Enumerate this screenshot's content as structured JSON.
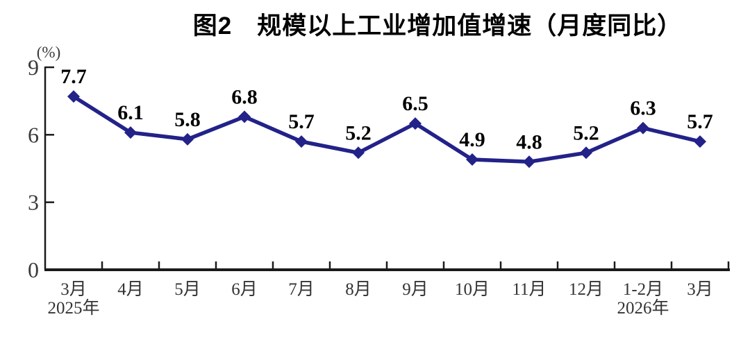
{
  "page": {
    "background": "#ffffff"
  },
  "chart_data": {
    "type": "line",
    "title": "图2　规模以上工业增加值增速（月度同比）",
    "unit_label": "(%)",
    "categories": [
      "3月",
      "4月",
      "5月",
      "6月",
      "7月",
      "8月",
      "9月",
      "10月",
      "11月",
      "12月",
      "1-2月",
      "3月"
    ],
    "category_sublabels": [
      {
        "index": 0,
        "text": "2025年"
      },
      {
        "index": 10,
        "text": "2026年"
      }
    ],
    "values": [
      7.7,
      6.1,
      5.8,
      6.8,
      5.7,
      5.2,
      6.5,
      4.9,
      4.8,
      5.2,
      6.3,
      5.7
    ],
    "data_labels": [
      "7.7",
      "6.1",
      "5.8",
      "6.8",
      "5.7",
      "5.2",
      "6.5",
      "4.9",
      "4.8",
      "5.2",
      "6.3",
      "5.7"
    ],
    "yticks": [
      0,
      3,
      6,
      9
    ],
    "ylim": [
      0,
      9
    ],
    "grid": false,
    "legend": null,
    "marker": "diamond",
    "colors": {
      "series": "#232289",
      "axis": "#1a1a1a",
      "tick_label": "#3b3b3b",
      "category_label": "#333333",
      "data_label": "#000000"
    }
  }
}
